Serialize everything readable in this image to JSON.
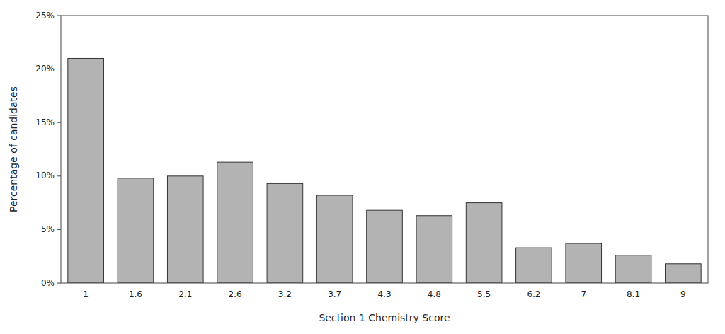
{
  "chart_data": {
    "type": "bar",
    "categories": [
      "1",
      "1.6",
      "2.1",
      "2.6",
      "3.2",
      "3.7",
      "4.3",
      "4.8",
      "5.5",
      "6.2",
      "7",
      "8.1",
      "9"
    ],
    "values": [
      0.21,
      0.098,
      0.1,
      0.113,
      0.093,
      0.082,
      0.068,
      0.063,
      0.075,
      0.033,
      0.037,
      0.026,
      0.018
    ],
    "color": "#b3b3b3",
    "xlabel": "Section 1 Chemistry Score",
    "ylabel": "Percentage of candidates",
    "ylim": [
      0,
      0.25
    ],
    "yticks": [
      {
        "value": 0,
        "label": "0%"
      },
      {
        "value": 0.05,
        "label": "5%"
      },
      {
        "value": 0.1,
        "label": "10%"
      },
      {
        "value": 0.15,
        "label": "15%"
      },
      {
        "value": 0.2,
        "label": "20%"
      },
      {
        "value": 0.25,
        "label": "25%"
      }
    ],
    "grid": false
  }
}
